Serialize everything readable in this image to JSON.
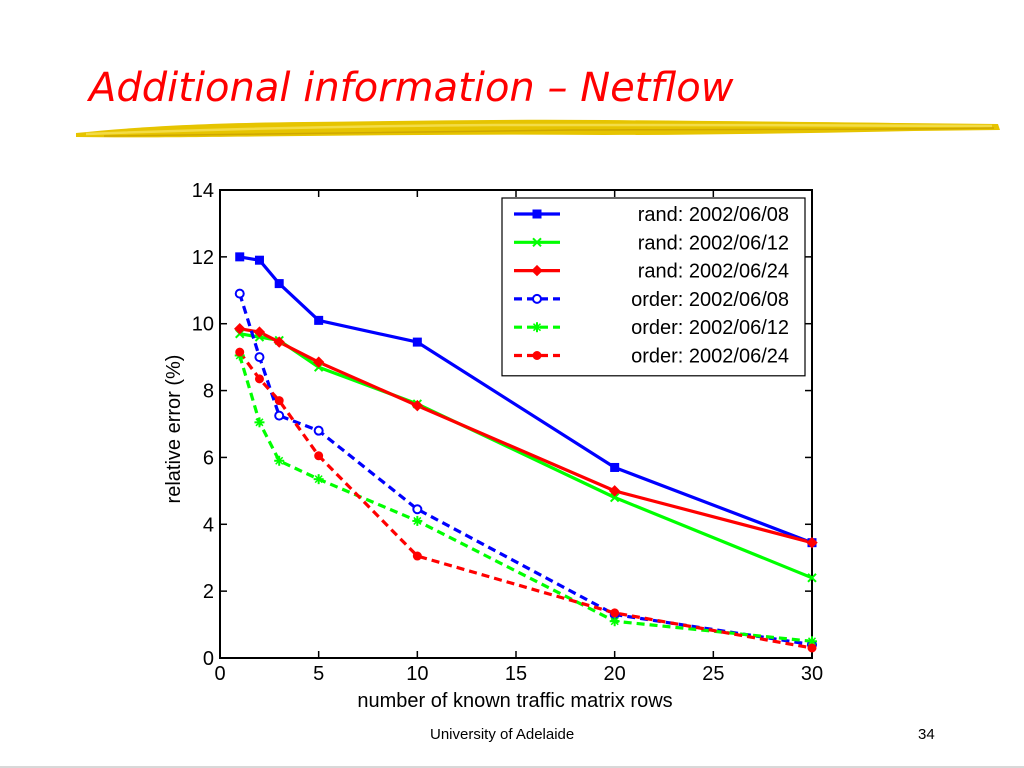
{
  "slide": {
    "title": "Additional information – Netflow",
    "footer": "University of Adelaide",
    "page_number": "34"
  },
  "colors": {
    "title": "#ff0000",
    "underline": "#e6c400",
    "rand_2002_06_08": "#0000ff",
    "rand_2002_06_12": "#00ff00",
    "rand_2002_06_24": "#ff0000"
  },
  "chart_data": {
    "type": "line",
    "title": "",
    "xlabel": "number of known traffic matrix rows",
    "ylabel": "relative error (%)",
    "xlim": [
      0,
      30
    ],
    "ylim": [
      0,
      14
    ],
    "xticks": [
      0,
      5,
      10,
      15,
      20,
      25,
      30
    ],
    "yticks": [
      0,
      2,
      4,
      6,
      8,
      10,
      12,
      14
    ],
    "grid": false,
    "legend_position": "top-right",
    "series": [
      {
        "name": "rand: 2002/06/08",
        "color": "#0000ff",
        "line_style": "solid",
        "marker": "square",
        "x": [
          1,
          2,
          3,
          5,
          10,
          20,
          30
        ],
        "y": [
          12.0,
          11.9,
          11.2,
          10.1,
          9.45,
          5.7,
          3.45
        ]
      },
      {
        "name": "rand: 2002/06/12",
        "color": "#00ff00",
        "line_style": "solid",
        "marker": "x",
        "x": [
          1,
          2,
          3,
          5,
          10,
          20,
          30
        ],
        "y": [
          9.7,
          9.6,
          9.5,
          8.7,
          7.6,
          4.8,
          2.4
        ]
      },
      {
        "name": "rand: 2002/06/24",
        "color": "#ff0000",
        "line_style": "solid",
        "marker": "diamond",
        "x": [
          1,
          2,
          3,
          5,
          10,
          20,
          30
        ],
        "y": [
          9.85,
          9.75,
          9.45,
          8.85,
          7.55,
          5.0,
          3.45
        ]
      },
      {
        "name": "order: 2002/06/08",
        "color": "#0000ff",
        "line_style": "dashed",
        "marker": "circle",
        "x": [
          1,
          2,
          3,
          5,
          10,
          20,
          30
        ],
        "y": [
          10.9,
          9.0,
          7.25,
          6.8,
          4.45,
          1.3,
          0.4
        ]
      },
      {
        "name": "order: 2002/06/12",
        "color": "#00ff00",
        "line_style": "dashed",
        "marker": "star",
        "x": [
          1,
          2,
          3,
          5,
          10,
          20,
          30
        ],
        "y": [
          9.05,
          7.05,
          5.9,
          5.35,
          4.1,
          1.1,
          0.5
        ]
      },
      {
        "name": "order: 2002/06/24",
        "color": "#ff0000",
        "line_style": "dashed",
        "marker": "dot",
        "x": [
          1,
          2,
          3,
          5,
          10,
          20,
          30
        ],
        "y": [
          9.15,
          8.35,
          7.7,
          6.05,
          3.05,
          1.35,
          0.3
        ]
      }
    ]
  }
}
